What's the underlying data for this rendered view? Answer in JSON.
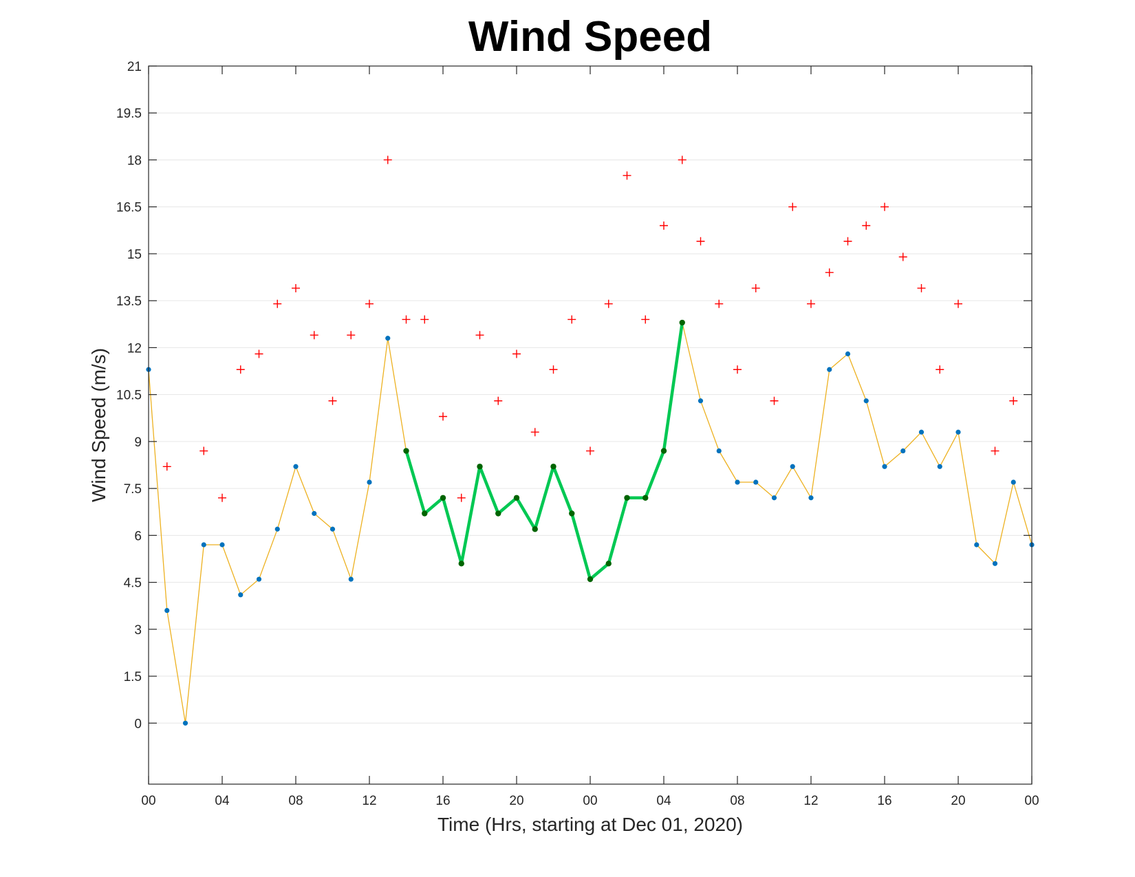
{
  "chart_data": {
    "type": "line",
    "title": "Wind Speed",
    "xlabel": "Time (Hrs, starting at Dec 01, 2020)",
    "ylabel": "Wind Speed (m/s)",
    "xlim": [
      0,
      48
    ],
    "ylim": [
      -1.95,
      21
    ],
    "grid": "horizontal",
    "x_ticks": [
      {
        "x": 0,
        "label": "00"
      },
      {
        "x": 4,
        "label": "04"
      },
      {
        "x": 8,
        "label": "08"
      },
      {
        "x": 12,
        "label": "12"
      },
      {
        "x": 16,
        "label": "16"
      },
      {
        "x": 20,
        "label": "20"
      },
      {
        "x": 24,
        "label": "00"
      },
      {
        "x": 28,
        "label": "04"
      },
      {
        "x": 32,
        "label": "08"
      },
      {
        "x": 36,
        "label": "12"
      },
      {
        "x": 40,
        "label": "16"
      },
      {
        "x": 44,
        "label": "20"
      },
      {
        "x": 48,
        "label": "00"
      }
    ],
    "y_ticks": [
      {
        "y": 0,
        "label": "0"
      },
      {
        "y": 1.5,
        "label": "1.5"
      },
      {
        "y": 3,
        "label": "3"
      },
      {
        "y": 4.5,
        "label": "4.5"
      },
      {
        "y": 6,
        "label": "6"
      },
      {
        "y": 7.5,
        "label": "7.5"
      },
      {
        "y": 9,
        "label": "9"
      },
      {
        "y": 10.5,
        "label": "10.5"
      },
      {
        "y": 12,
        "label": "12"
      },
      {
        "y": 13.5,
        "label": "13.5"
      },
      {
        "y": 15,
        "label": "15"
      },
      {
        "y": 16.5,
        "label": "16.5"
      },
      {
        "y": 18,
        "label": "18"
      },
      {
        "y": 19.5,
        "label": "19.5"
      },
      {
        "y": 21,
        "label": "21"
      }
    ],
    "series": [
      {
        "style": "line-with-dots",
        "line_color": "#edb120",
        "marker_color": "#0072bd",
        "x": [
          0,
          1,
          2,
          3,
          4,
          5,
          6,
          7,
          8,
          9,
          10,
          11,
          12,
          13,
          14,
          15,
          16,
          17,
          18,
          19,
          20,
          21,
          22,
          23,
          24,
          25,
          26,
          27,
          28,
          29,
          30,
          31,
          32,
          33,
          34,
          35,
          36,
          37,
          38,
          39,
          40,
          41,
          42,
          43,
          44,
          45,
          46,
          47,
          48
        ],
        "values": [
          11.3,
          3.6,
          0,
          5.7,
          5.7,
          4.1,
          4.6,
          6.2,
          8.2,
          6.7,
          6.2,
          4.6,
          7.7,
          12.3,
          8.7,
          6.7,
          7.2,
          5.1,
          8.2,
          6.7,
          7.2,
          6.2,
          8.2,
          6.7,
          4.6,
          5.1,
          7.2,
          7.2,
          8.7,
          12.8,
          10.3,
          8.7,
          7.7,
          7.7,
          7.2,
          8.2,
          7.2,
          11.3,
          11.8,
          10.3,
          8.2,
          8.7,
          9.3,
          8.2,
          9.3,
          5.7,
          5.1,
          7.7,
          5.7
        ]
      },
      {
        "style": "highlight-segment",
        "line_color": "#00c853",
        "marker_color": "#006400",
        "x": [
          14,
          15,
          16,
          17,
          18,
          19,
          20,
          21,
          22,
          23,
          24,
          25,
          26,
          27,
          28,
          29
        ],
        "values": [
          8.7,
          6.7,
          7.2,
          5.1,
          8.2,
          6.7,
          7.2,
          6.2,
          8.2,
          6.7,
          4.6,
          5.1,
          7.2,
          7.2,
          8.7,
          12.8
        ]
      },
      {
        "style": "plus-markers",
        "marker_color": "#ff0000",
        "x": [
          1,
          3,
          4,
          5,
          6,
          7,
          8,
          9,
          10,
          11,
          12,
          13,
          14,
          15,
          16,
          17,
          18,
          19,
          20,
          21,
          22,
          23,
          24,
          25,
          26,
          27,
          28,
          29,
          30,
          31,
          32,
          33,
          34,
          35,
          36,
          37,
          38,
          39,
          40,
          41,
          42,
          43,
          44,
          46,
          47
        ],
        "values": [
          8.2,
          8.7,
          7.2,
          11.3,
          11.8,
          13.4,
          13.9,
          12.4,
          10.3,
          12.4,
          13.4,
          18,
          12.9,
          12.9,
          9.8,
          7.2,
          12.4,
          10.3,
          11.8,
          9.3,
          11.3,
          12.9,
          8.7,
          13.4,
          17.5,
          12.9,
          15.9,
          18,
          15.4,
          13.4,
          11.3,
          13.9,
          10.3,
          16.5,
          13.4,
          14.4,
          15.4,
          15.9,
          16.5,
          14.9,
          13.9,
          11.3,
          13.4,
          8.7,
          10.3
        ]
      }
    ]
  }
}
